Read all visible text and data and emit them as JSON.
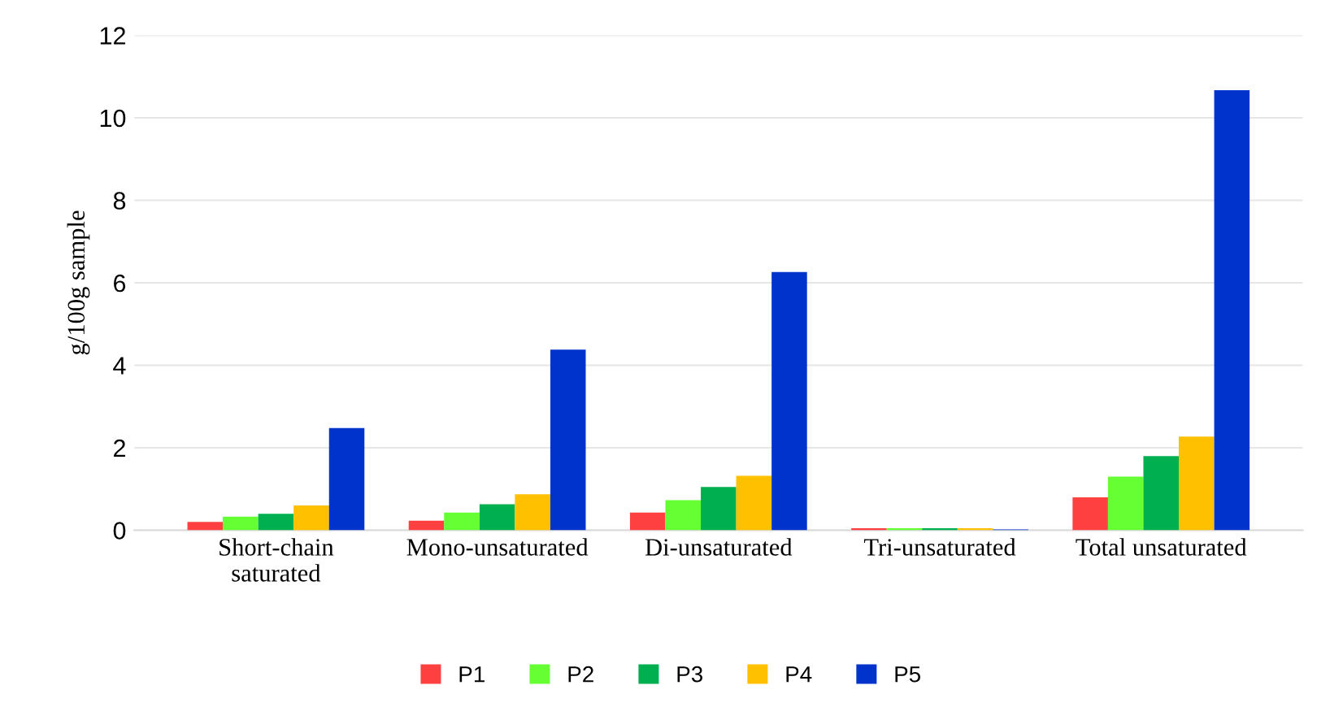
{
  "chart_data": {
    "type": "bar",
    "ylabel": "g/100g sample",
    "categories": [
      "Short-chain\nsaturated",
      "Mono-unsaturated",
      "Di-unsaturated",
      "Tri-unsaturated",
      "Total unsaturated"
    ],
    "series": [
      {
        "name": "P1",
        "color": "#ff4040",
        "values": [
          0.2,
          0.23,
          0.43,
          0.05,
          0.8
        ]
      },
      {
        "name": "P2",
        "color": "#66ff33",
        "values": [
          0.33,
          0.43,
          0.73,
          0.05,
          1.3
        ]
      },
      {
        "name": "P3",
        "color": "#00b050",
        "values": [
          0.4,
          0.63,
          1.05,
          0.05,
          1.8
        ]
      },
      {
        "name": "P4",
        "color": "#ffc000",
        "values": [
          0.6,
          0.87,
          1.32,
          0.05,
          2.27
        ]
      },
      {
        "name": "P5",
        "color": "#0033cc",
        "values": [
          2.48,
          4.38,
          6.26,
          0.02,
          10.67
        ]
      }
    ],
    "ylim": [
      0,
      12
    ],
    "yticks": [
      0,
      2,
      4,
      6,
      8,
      10,
      12
    ],
    "grid": "y",
    "legend": "bottom"
  }
}
